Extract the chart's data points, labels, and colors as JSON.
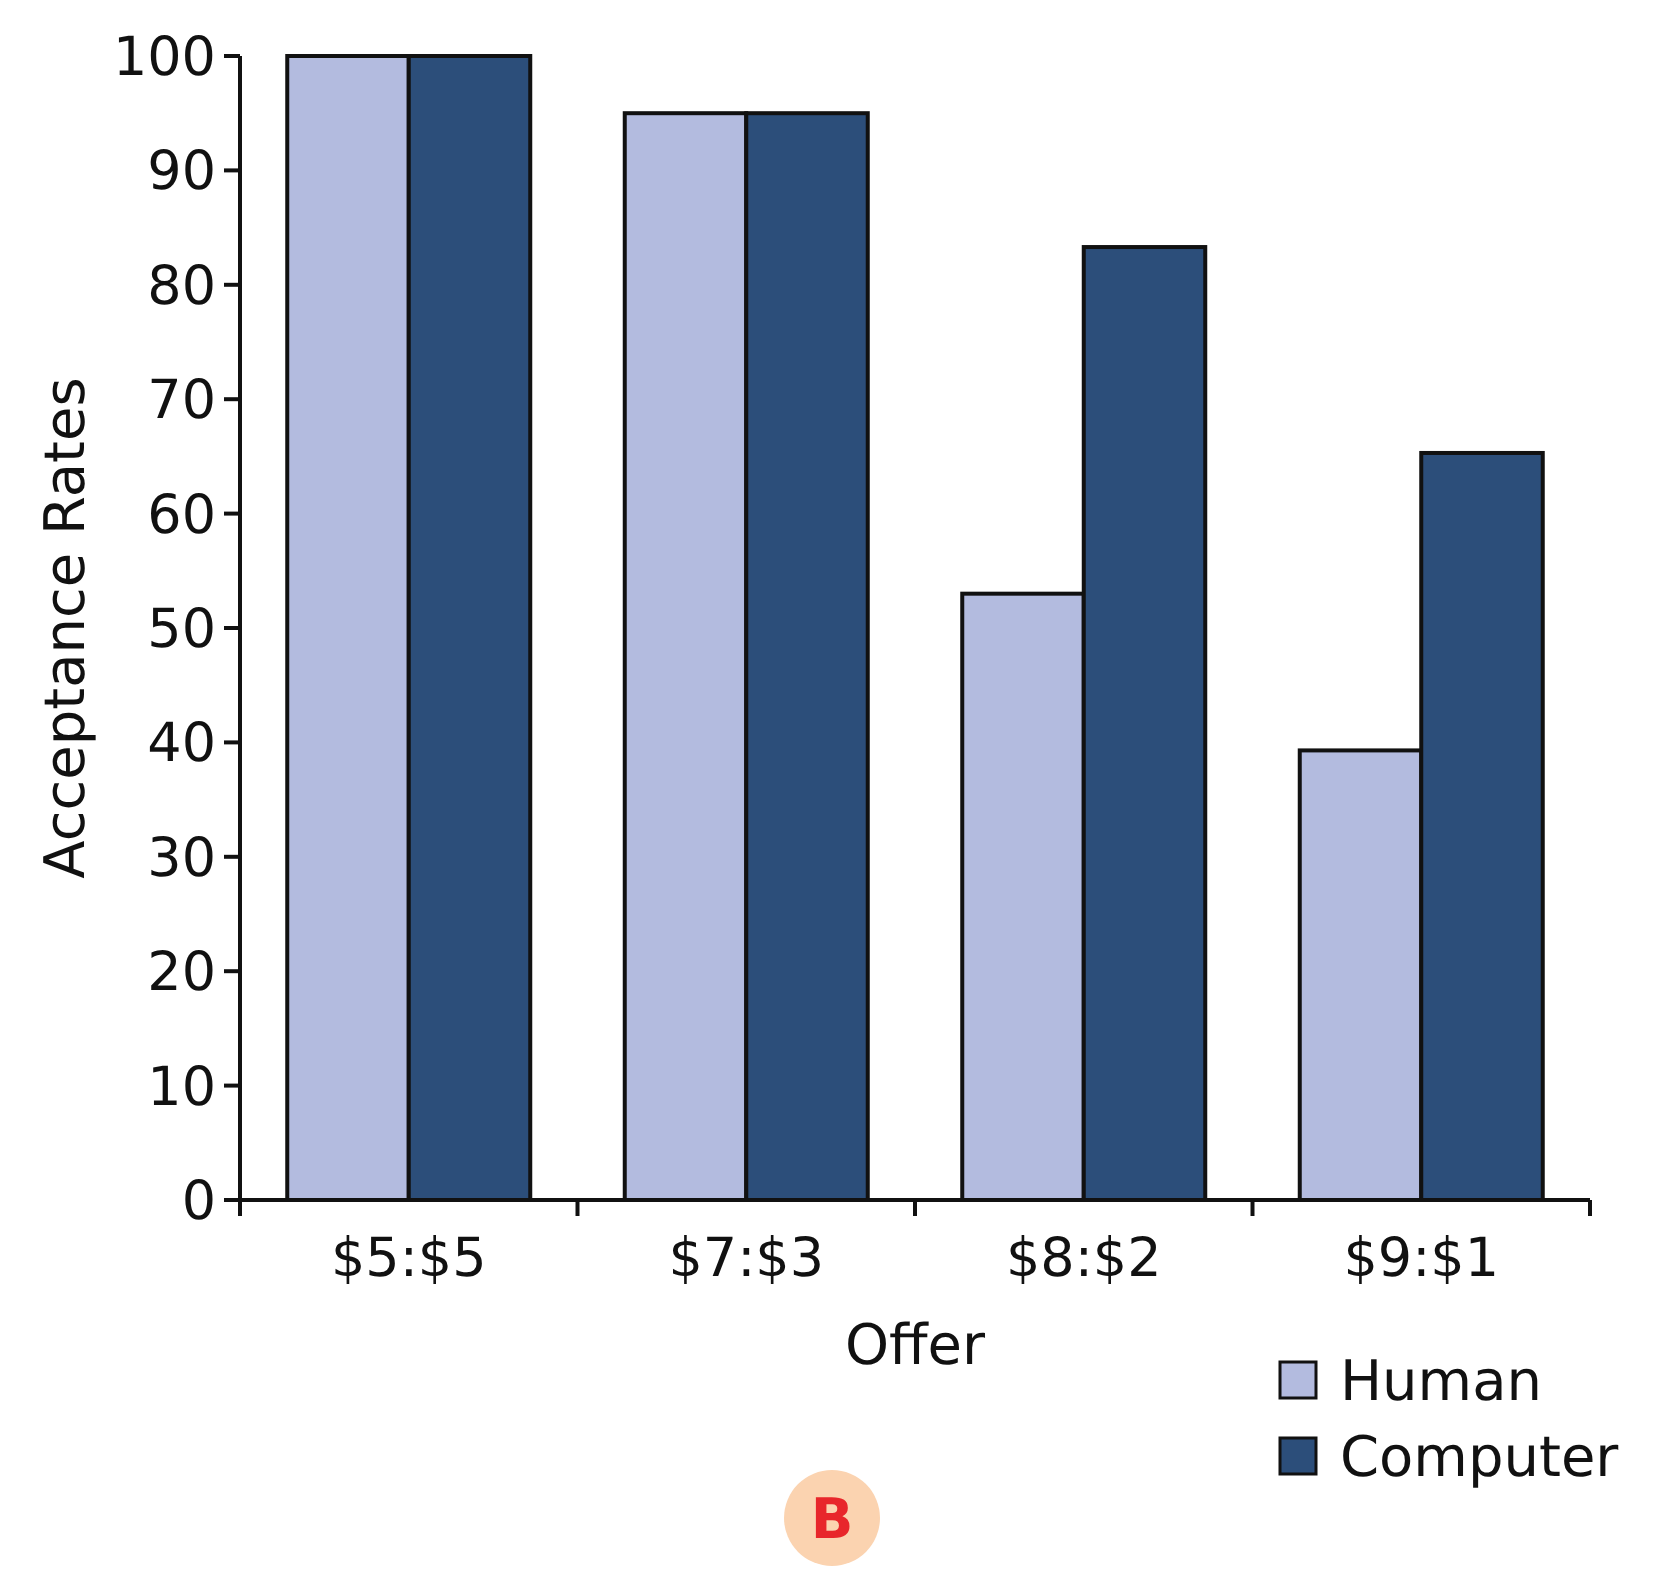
{
  "chart_data": {
    "type": "bar",
    "xlabel": "Offer",
    "ylabel": "Acceptance Rates",
    "categories": [
      "$5:$5",
      "$7:$3",
      "$8:$2",
      "$9:$1"
    ],
    "series": [
      {
        "name": "Human",
        "color": "#b3bbdf",
        "values": [
          100,
          95,
          53,
          39.3
        ]
      },
      {
        "name": "Computer",
        "color": "#2c4e7a",
        "values": [
          100,
          95,
          83.3,
          65.3
        ]
      }
    ],
    "ylim": [
      0,
      100
    ],
    "yticks": [
      0,
      10,
      20,
      30,
      40,
      50,
      60,
      70,
      80,
      90,
      100
    ],
    "grid": false,
    "legend": "bottom right",
    "annotations": [
      "B"
    ]
  }
}
